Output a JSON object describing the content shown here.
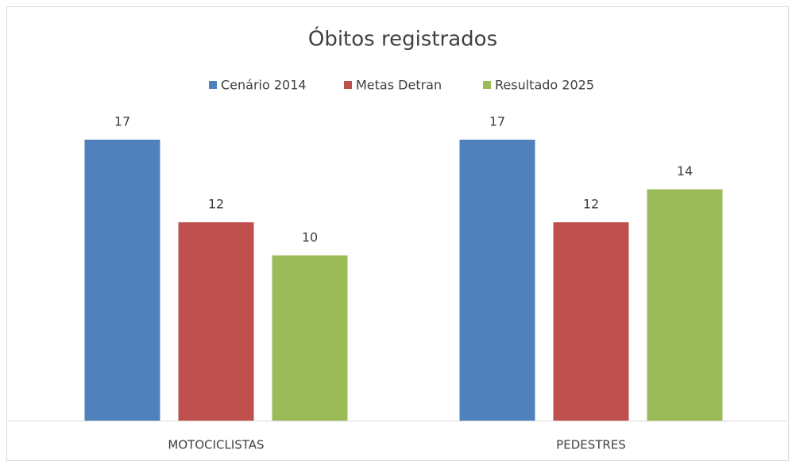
{
  "chart_data": {
    "type": "bar",
    "title": "Óbitos registrados",
    "categories": [
      "MOTOCICLISTAS",
      "PEDESTRES"
    ],
    "series": [
      {
        "name": "Cenário 2014",
        "color": "#4f81bd",
        "values": [
          17,
          17
        ]
      },
      {
        "name": "Metas Detran",
        "color": "#c0504d",
        "values": [
          12,
          12
        ]
      },
      {
        "name": "Resultado 2025",
        "color": "#9bbb59",
        "values": [
          10,
          14
        ]
      }
    ],
    "legend": "top"
  }
}
